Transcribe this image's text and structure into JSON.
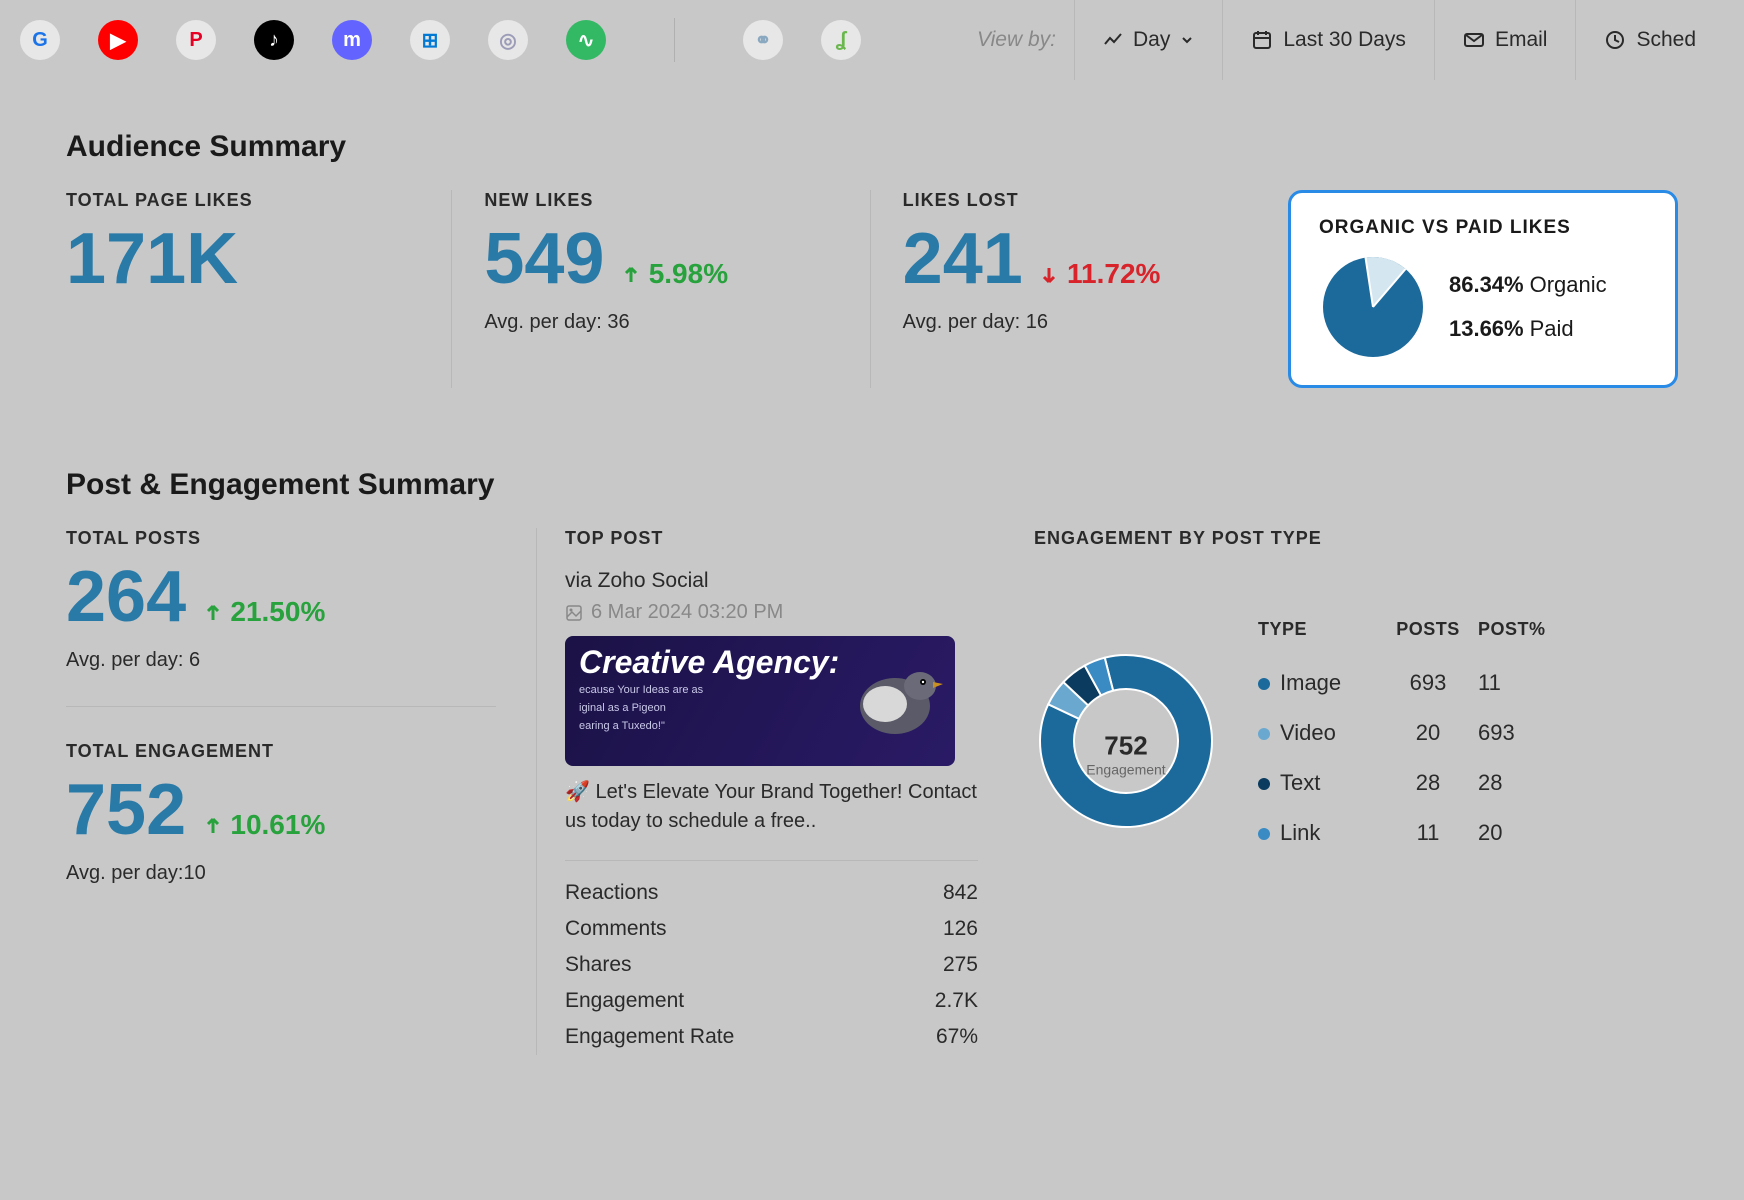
{
  "topbar": {
    "view_by_label": "View by:",
    "view_by_value": "Day",
    "date_range": "Last 30 Days",
    "email": "Email",
    "schedule": "Sched",
    "social_icons": [
      {
        "name": "google",
        "glyph": "G",
        "bg": "#e7e7e7",
        "fg": "#1a73e8"
      },
      {
        "name": "youtube",
        "glyph": "▶",
        "bg": "#ff0000",
        "fg": "#ffffff"
      },
      {
        "name": "pinterest",
        "glyph": "P",
        "bg": "#e7e7e7",
        "fg": "#e60023"
      },
      {
        "name": "tiktok",
        "glyph": "♪",
        "bg": "#000000",
        "fg": "#ffffff"
      },
      {
        "name": "mastodon",
        "glyph": "m",
        "bg": "#6364ff",
        "fg": "#ffffff"
      },
      {
        "name": "windows",
        "glyph": "⊞",
        "bg": "#e7e7e7",
        "fg": "#0078d4"
      },
      {
        "name": "spiral",
        "glyph": "◎",
        "bg": "#e7e7e7",
        "fg": "#9c9cb8"
      },
      {
        "name": "pulse",
        "glyph": "∿",
        "bg": "#33b864",
        "fg": "#ffffff"
      },
      {
        "name": "link",
        "glyph": "⚭",
        "bg": "#e7e7e7",
        "fg": "#8aa8c0"
      },
      {
        "name": "hook",
        "glyph": "ʆ",
        "bg": "#e7e7e7",
        "fg": "#6ab84d"
      }
    ]
  },
  "audience": {
    "title": "Audience Summary",
    "total_likes_label": "TOTAL PAGE LIKES",
    "total_likes_value": "171K",
    "new_likes_label": "NEW LIKES",
    "new_likes_value": "549",
    "new_likes_change": "5.98%",
    "new_likes_dir": "up",
    "new_likes_sub": "Avg. per day: 36",
    "likes_lost_label": "LIKES LOST",
    "likes_lost_value": "241",
    "likes_lost_change": "11.72%",
    "likes_lost_dir": "down",
    "likes_lost_sub": "Avg. per day: 16",
    "pie": {
      "title": "ORGANIC VS PAID LIKES",
      "organic_pct": 86.34,
      "paid_pct": 13.66,
      "organic_label": "Organic",
      "paid_label": "Paid",
      "organic_color": "#1c6a9c",
      "paid_color": "#d4e6f0",
      "organic_text": "86.34%",
      "paid_text": "13.66%"
    }
  },
  "post_eng": {
    "title": "Post & Engagement Summary",
    "total_posts_label": "TOTAL POSTS",
    "total_posts_value": "264",
    "total_posts_change": "21.50%",
    "total_posts_sub": "Avg. per day: 6",
    "total_eng_label": "TOTAL ENGAGEMENT",
    "total_eng_value": "752",
    "total_eng_change": "10.61%",
    "total_eng_sub": "Avg. per day:10",
    "top_post": {
      "label": "TOP POST",
      "via": "via Zoho Social",
      "date": "6 Mar 2024 03:20 PM",
      "img_title": "Creative Agency:",
      "img_sub1": "ecause Your Ideas are as",
      "img_sub2": "iginal as a Pigeon",
      "img_sub3": "earing a Tuxedo!\"",
      "caption": "🚀 Let's Elevate Your Brand Together! Contact us today to schedule a free..",
      "stats": [
        {
          "label": "Reactions",
          "value": "842"
        },
        {
          "label": "Comments",
          "value": "126"
        },
        {
          "label": "Shares",
          "value": "275"
        },
        {
          "label": "Engagement",
          "value": "2.7K"
        },
        {
          "label": "Engagement Rate",
          "value": "67%"
        }
      ]
    },
    "eng_by_type": {
      "label": "ENGAGEMENT BY POST TYPE",
      "center_value": "752",
      "center_label": "Engagement",
      "columns": [
        "TYPE",
        "POSTS",
        "POST%"
      ],
      "rows": [
        {
          "type": "Image",
          "posts": "693",
          "pct": "11",
          "color": "#1c6a9c",
          "share": 86
        },
        {
          "type": "Video",
          "posts": "20",
          "pct": "693",
          "color": "#6aa8d0",
          "share": 5
        },
        {
          "type": "Text",
          "posts": "28",
          "pct": "28",
          "color": "#0b3b5e",
          "share": 5
        },
        {
          "type": "Link",
          "posts": "11",
          "pct": "20",
          "color": "#3a8bc4",
          "share": 4
        }
      ]
    }
  },
  "colors": {
    "metric_value": "#2a7aa8",
    "up": "#27a23c",
    "down": "#d8232a",
    "panel_bg": "#c8c8c8",
    "highlight_border": "#2a8be6"
  }
}
